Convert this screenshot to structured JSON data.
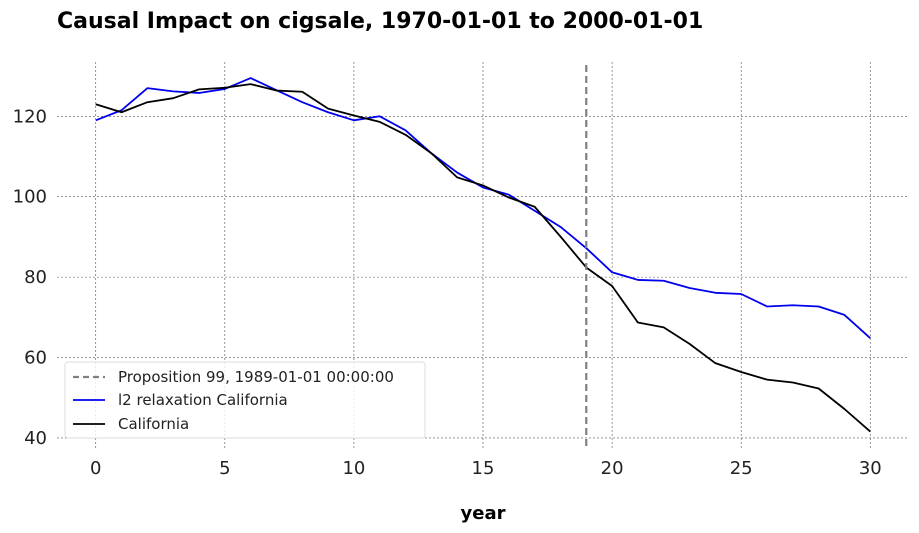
{
  "chart_data": {
    "type": "line",
    "title": "Causal Impact on cigsale, 1970-01-01 to 2000-01-01",
    "xlabel": "year",
    "ylabel": "",
    "xlim": [
      -1.5,
      31.5
    ],
    "ylim": [
      37.5,
      133.5
    ],
    "xticks": [
      0,
      5,
      10,
      15,
      20,
      25,
      30
    ],
    "yticks": [
      40,
      60,
      80,
      100,
      120
    ],
    "grid": true,
    "legend_position": "lower-left",
    "intervention": {
      "x": 19,
      "label": "Proposition 99, 1989-01-01 00:00:00",
      "color": "#808080"
    },
    "x": [
      0,
      1,
      2,
      3,
      4,
      5,
      6,
      7,
      8,
      9,
      10,
      11,
      12,
      13,
      14,
      15,
      16,
      17,
      18,
      19,
      20,
      21,
      22,
      23,
      24,
      25,
      26,
      27,
      28,
      29,
      30
    ],
    "series": [
      {
        "name": "l2 relaxation California",
        "color": "#0000ee",
        "values": [
          119.0,
          121.5,
          127.0,
          126.2,
          125.8,
          126.8,
          129.5,
          126.5,
          123.5,
          121.0,
          119.0,
          120.0,
          116.5,
          110.8,
          106.0,
          102.3,
          100.5,
          96.5,
          92.5,
          87.2,
          81.2,
          79.3,
          79.1,
          77.3,
          76.1,
          75.8,
          72.7,
          73.0,
          72.7,
          70.6,
          64.8
        ]
      },
      {
        "name": "California",
        "color": "#000000",
        "values": [
          123.0,
          121.0,
          123.5,
          124.5,
          126.7,
          127.1,
          128.0,
          126.4,
          126.1,
          121.9,
          120.2,
          118.6,
          115.4,
          110.8,
          104.8,
          102.8,
          99.8,
          97.5,
          90.1,
          82.4,
          77.8,
          68.7,
          67.5,
          63.4,
          58.6,
          56.4,
          54.5,
          53.8,
          52.3,
          47.2,
          41.6
        ]
      }
    ]
  }
}
